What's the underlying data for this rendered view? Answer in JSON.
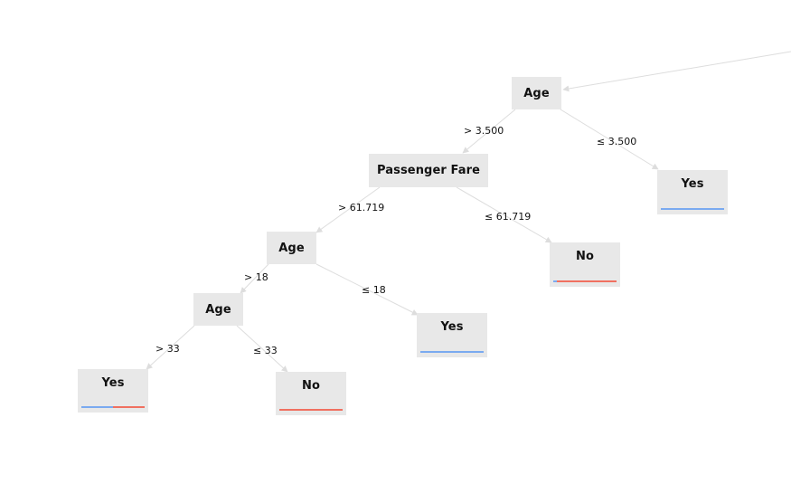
{
  "colors": {
    "node_bg": "#e8e8e8",
    "edge": "#dddddd",
    "yes": "#7aaaf0",
    "no": "#f07060"
  },
  "tree": {
    "root": {
      "label": "Age"
    },
    "root_left_edge": {
      "label": "> 3.500"
    },
    "root_right_edge": {
      "label": "≤ 3.500"
    },
    "n_fare": {
      "label": "Passenger Fare"
    },
    "fare_left_edge": {
      "label": "> 61.719"
    },
    "fare_right_edge": {
      "label": "≤ 61.719"
    },
    "n_age2": {
      "label": "Age"
    },
    "age2_left_edge": {
      "label": "> 18"
    },
    "age2_right_edge": {
      "label": "≤ 18"
    },
    "n_age3": {
      "label": "Age"
    },
    "age3_left_edge": {
      "label": "> 33"
    },
    "age3_right_edge": {
      "label": "≤ 33"
    },
    "leaf_yes_root": {
      "label": "Yes",
      "yes_share": 1.0,
      "no_share": 0.0
    },
    "leaf_no_fare": {
      "label": "No",
      "yes_share": 0.05,
      "no_share": 0.95
    },
    "leaf_yes_age2": {
      "label": "Yes",
      "yes_share": 1.0,
      "no_share": 0.0
    },
    "leaf_yes_age3": {
      "label": "Yes",
      "yes_share": 0.5,
      "no_share": 0.5
    },
    "leaf_no_age3": {
      "label": "No",
      "yes_share": 0.0,
      "no_share": 1.0
    }
  }
}
